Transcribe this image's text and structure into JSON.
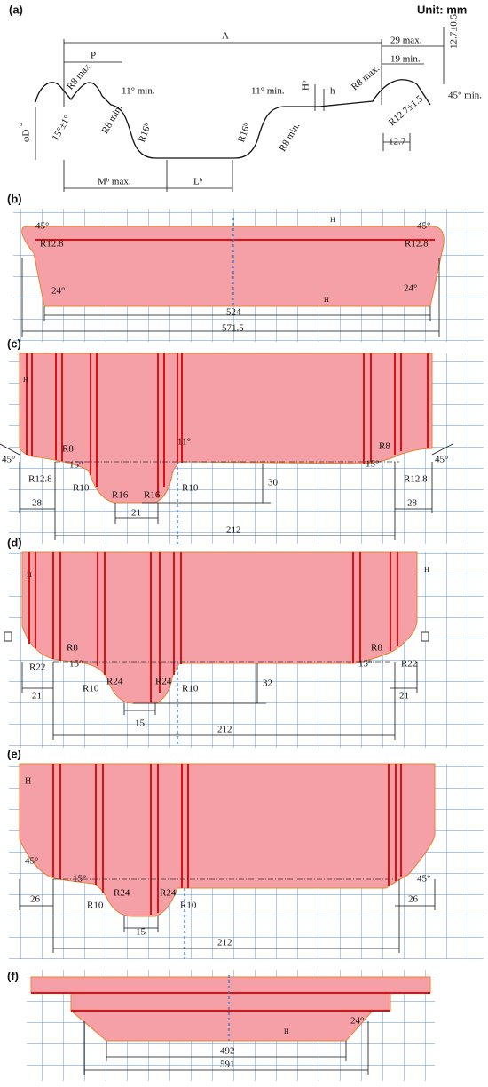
{
  "header": {
    "unit": "Unit: mm"
  },
  "panels": [
    {
      "label": "(a)",
      "texts": [
        "A",
        "P",
        "R8 max.",
        "11° min.",
        "11° min.",
        "15°±1°",
        "R8 min.",
        "R16ᵇ",
        "R16ᵇ",
        "R8 min.",
        "Hᵇ",
        "h",
        "R8 max.",
        "29 max.",
        "19 min.",
        "12.7±0.5",
        "45° min.",
        "R12.7±1.5",
        "12.7",
        "φD",
        "Mᵇ max.",
        "Lᵇ",
        "a"
      ]
    },
    {
      "label": "(b)",
      "texts": [
        "45°",
        "45°",
        "R12.8",
        "R12.8",
        "24°",
        "24°",
        "524",
        "571.5",
        "H",
        "H"
      ]
    },
    {
      "label": "(c)",
      "texts": [
        "45°",
        "R8",
        "15°",
        "R12.8",
        "R10",
        "R16",
        "R16",
        "11°",
        "R10",
        "30",
        "R8",
        "15°",
        "R12.8",
        "45°",
        "28",
        "21",
        "28",
        "212",
        "H"
      ]
    },
    {
      "label": "(d)",
      "texts": [
        "R8",
        "R22",
        "15°",
        "R10",
        "R24",
        "R24",
        "R10",
        "32",
        "R8",
        "15°",
        "R22",
        "21",
        "21",
        "15",
        "212",
        "H",
        "H"
      ]
    },
    {
      "label": "(e)",
      "texts": [
        "45°",
        "15°",
        "R10",
        "R24",
        "R24",
        "R10",
        "45°",
        "26",
        "15",
        "26",
        "212",
        "H"
      ]
    },
    {
      "label": "(f)",
      "texts": [
        "24°",
        "492",
        "591",
        "H"
      ]
    }
  ]
}
